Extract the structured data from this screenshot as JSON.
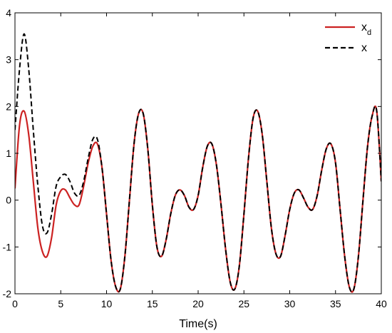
{
  "chart_data": {
    "type": "line",
    "title": "",
    "xlabel": "Time(s)",
    "ylabel": "",
    "xlim": [
      0,
      40
    ],
    "ylim": [
      -2,
      4
    ],
    "xticks": [
      0,
      5,
      10,
      15,
      20,
      25,
      30,
      35,
      40
    ],
    "yticks": [
      -2,
      -1,
      0,
      1,
      2,
      3,
      4
    ],
    "grid": false,
    "legend_position": "top-right",
    "series": [
      {
        "name": "x_d",
        "legend_main": "x",
        "legend_sub": "d",
        "color": "#cc2222",
        "style": "solid",
        "x": [
          0,
          0.5,
          1.0,
          1.5,
          2.0,
          2.5,
          3.0,
          3.5,
          4.0,
          4.5,
          5.0,
          5.5,
          6.0,
          6.5,
          7.0,
          7.5,
          8.0,
          8.5,
          9.0,
          9.5,
          10.0,
          10.5,
          11.0,
          11.5,
          12.0,
          12.5,
          13.0,
          13.5,
          14.0,
          14.5,
          15.0,
          15.5,
          16.0,
          16.5,
          17.0,
          17.5,
          18.0,
          18.5,
          19.0,
          19.5,
          20.0,
          20.5,
          21.0,
          21.5,
          22.0,
          22.5,
          23.0,
          23.5,
          24.0,
          24.5,
          25.0,
          25.5,
          26.0,
          26.5,
          27.0,
          27.5,
          28.0,
          28.5,
          29.0,
          29.5,
          30.0,
          30.5,
          31.0,
          31.5,
          32.0,
          32.5,
          33.0,
          33.5,
          34.0,
          34.5,
          35.0,
          35.5,
          36.0,
          36.5,
          37.0,
          37.5,
          38.0,
          38.5,
          39.0,
          39.5,
          40.0
        ],
        "y": [
          0.25,
          1.6,
          1.9,
          1.4,
          0.4,
          -0.6,
          -1.1,
          -1.2,
          -0.8,
          -0.1,
          0.2,
          0.22,
          0.05,
          -0.1,
          -0.1,
          0.3,
          0.8,
          1.15,
          1.2,
          0.7,
          -0.3,
          -1.3,
          -1.85,
          -1.9,
          -1.2,
          0.0,
          1.2,
          1.85,
          1.85,
          1.1,
          -0.1,
          -1.0,
          -1.2,
          -0.85,
          -0.3,
          0.1,
          0.22,
          0.1,
          -0.15,
          -0.2,
          0.1,
          0.7,
          1.15,
          1.2,
          0.75,
          -0.1,
          -1.05,
          -1.75,
          -1.9,
          -1.4,
          -0.3,
          0.9,
          1.75,
          1.9,
          1.4,
          0.4,
          -0.6,
          -1.15,
          -1.2,
          -0.75,
          -0.2,
          0.15,
          0.22,
          0.05,
          -0.15,
          -0.2,
          0.1,
          0.65,
          1.1,
          1.2,
          0.8,
          -0.2,
          -1.2,
          -1.85,
          -1.9,
          -1.2,
          0.0,
          1.15,
          1.8,
          1.9,
          0.4
        ]
      },
      {
        "name": "x",
        "legend_main": "x",
        "legend_sub": "",
        "color": "#000000",
        "style": "dashed",
        "x": [
          0,
          0.5,
          1.0,
          1.5,
          2.0,
          2.5,
          3.0,
          3.5,
          4.0,
          4.5,
          5.0,
          5.5,
          6.0,
          6.5,
          7.0,
          7.5,
          8.0,
          8.5,
          9.0,
          9.5,
          10.0,
          10.5,
          11.0,
          11.5,
          12.0,
          12.5,
          13.0,
          13.5,
          14.0,
          14.5,
          15.0,
          15.5,
          16.0,
          16.5,
          17.0,
          17.5,
          18.0,
          18.5,
          19.0,
          19.5,
          20.0,
          20.5,
          21.0,
          21.5,
          22.0,
          22.5,
          23.0,
          23.5,
          24.0,
          24.5,
          25.0,
          25.5,
          26.0,
          26.5,
          27.0,
          27.5,
          28.0,
          28.5,
          29.0,
          29.5,
          30.0,
          30.5,
          31.0,
          31.5,
          32.0,
          32.5,
          33.0,
          33.5,
          34.0,
          34.5,
          35.0,
          35.5,
          36.0,
          36.5,
          37.0,
          37.5,
          38.0,
          38.5,
          39.0,
          39.5,
          40.0
        ],
        "y": [
          1.5,
          2.8,
          3.55,
          2.8,
          1.5,
          0.3,
          -0.55,
          -0.7,
          -0.3,
          0.3,
          0.5,
          0.55,
          0.4,
          0.15,
          0.1,
          0.4,
          0.9,
          1.3,
          1.3,
          0.7,
          -0.3,
          -1.3,
          -1.85,
          -1.9,
          -1.2,
          0.0,
          1.2,
          1.85,
          1.85,
          1.1,
          -0.1,
          -1.0,
          -1.2,
          -0.85,
          -0.3,
          0.1,
          0.22,
          0.1,
          -0.15,
          -0.2,
          0.1,
          0.7,
          1.15,
          1.2,
          0.75,
          -0.1,
          -1.05,
          -1.75,
          -1.9,
          -1.4,
          -0.3,
          0.9,
          1.75,
          1.9,
          1.4,
          0.4,
          -0.6,
          -1.15,
          -1.2,
          -0.75,
          -0.2,
          0.15,
          0.22,
          0.05,
          -0.15,
          -0.2,
          0.1,
          0.65,
          1.1,
          1.2,
          0.8,
          -0.2,
          -1.2,
          -1.85,
          -1.9,
          -1.2,
          0.0,
          1.15,
          1.8,
          1.9,
          0.4
        ]
      }
    ]
  }
}
